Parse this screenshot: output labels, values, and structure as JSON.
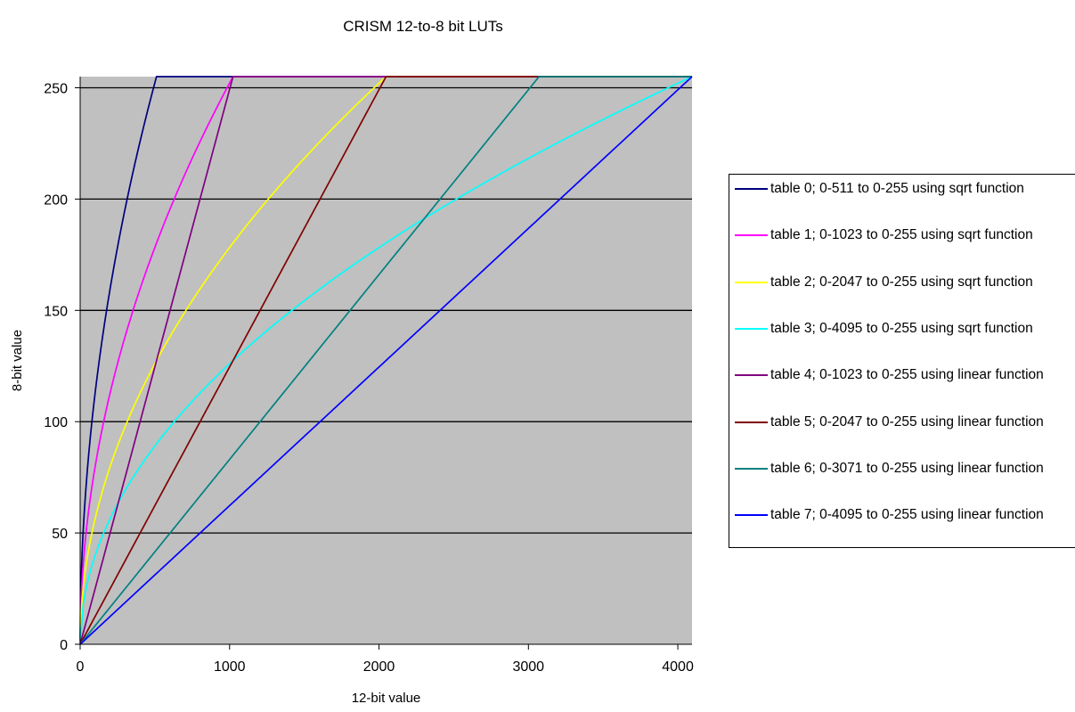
{
  "chart_data": {
    "type": "line",
    "title": "CRISM 12-to-8 bit LUTs",
    "xlabel": "12-bit value",
    "ylabel": "8-bit value",
    "xlim": [
      0,
      4095
    ],
    "ylim": [
      0,
      255
    ],
    "xticks": [
      "0",
      "1000",
      "2000",
      "3000",
      "4000"
    ],
    "yticks": [
      "0",
      "50",
      "100",
      "150",
      "200",
      "250"
    ],
    "grid": "horizontal",
    "plot_background": "#c0c0c0",
    "legend": "right",
    "series": [
      {
        "name": "table 0; 0-511 to 0-255 using sqrt function",
        "kind": "sqrt",
        "max_input": 511,
        "color": "#000080"
      },
      {
        "name": "table 1; 0-1023 to 0-255 using sqrt function",
        "kind": "sqrt",
        "max_input": 1023,
        "color": "#ff00ff"
      },
      {
        "name": "table 2; 0-2047 to 0-255 using sqrt function",
        "kind": "sqrt",
        "max_input": 2047,
        "color": "#ffff00"
      },
      {
        "name": "table 3; 0-4095 to 0-255 using sqrt function",
        "kind": "sqrt",
        "max_input": 4095,
        "color": "#00ffff"
      },
      {
        "name": "table 4; 0-1023 to 0-255 using linear function",
        "kind": "linear",
        "max_input": 1023,
        "color": "#800080"
      },
      {
        "name": "table 5; 0-2047 to 0-255 using linear function",
        "kind": "linear",
        "max_input": 2047,
        "color": "#800000"
      },
      {
        "name": "table 6; 0-3071 to 0-255 using linear function",
        "kind": "linear",
        "max_input": 3071,
        "color": "#008080"
      },
      {
        "name": "table 7; 0-4095 to 0-255 using linear function",
        "kind": "linear",
        "max_input": 4095,
        "color": "#0000ff"
      }
    ]
  }
}
